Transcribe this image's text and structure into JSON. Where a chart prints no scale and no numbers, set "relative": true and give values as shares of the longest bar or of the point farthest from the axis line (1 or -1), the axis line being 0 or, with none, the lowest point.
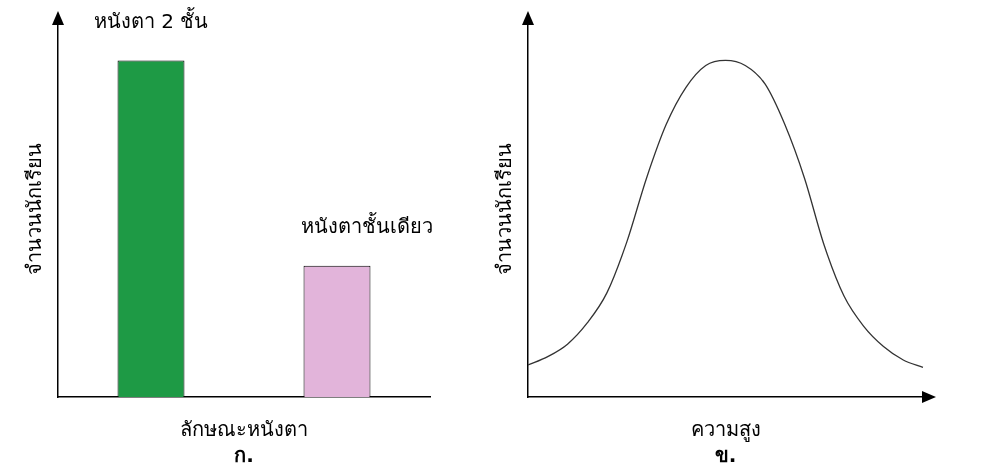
{
  "chart_data": [
    {
      "type": "bar",
      "categories": [
        "หนังตา 2 ชั้น",
        "หนังตาชั้นเดียว"
      ],
      "colors": [
        "#1e9a45",
        "#e2b4da"
      ],
      "values": [
        1,
        0.39
      ],
      "relative": true,
      "xlabel": "ลักษณะหนังตา",
      "ylabel": "จำนวนนักเรียน",
      "annotations": [
        "ก."
      ]
    },
    {
      "type": "line",
      "categories": [
        null,
        null,
        null,
        null,
        null,
        null,
        null,
        null,
        null,
        null,
        null,
        null,
        null,
        null,
        null,
        null,
        null,
        null,
        null,
        null,
        null
      ],
      "series": [
        {
          "color": "#333333",
          "values": [
            0.095,
            0.12,
            0.157,
            0.22,
            0.31,
            0.46,
            0.65,
            0.81,
            0.92,
            0.985,
            1,
            0.985,
            0.93,
            0.81,
            0.65,
            0.45,
            0.3,
            0.21,
            0.15,
            0.11,
            0.088
          ]
        }
      ],
      "relative": true,
      "xlabel": "ความสูง",
      "ylabel": "จำนวนนักเรียน",
      "annotations": [
        "ข."
      ]
    }
  ]
}
